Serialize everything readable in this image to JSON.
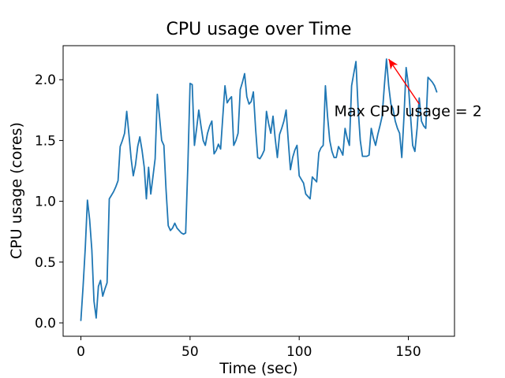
{
  "figure": {
    "title": "CPU usage over Time",
    "xlabel": "Time (sec)",
    "ylabel": "CPU usage (cores)"
  },
  "chart_data": {
    "type": "line",
    "title": "CPU usage over Time",
    "xlabel": "Time (sec)",
    "ylabel": "CPU usage (cores)",
    "line_color": "#1f77b4",
    "background_color": "#ffffff",
    "grid": false,
    "legend": false,
    "xlim": [
      -8.15,
      171.15
    ],
    "ylim": [
      -0.11,
      2.28
    ],
    "xticks": [
      0,
      50,
      100,
      150
    ],
    "xtick_labels": [
      "0",
      "50",
      "100",
      "150"
    ],
    "yticks": [
      0.0,
      0.5,
      1.0,
      1.5,
      2.0
    ],
    "ytick_labels": [
      "0.0",
      "0.5",
      "1.0",
      "1.5",
      "2.0"
    ],
    "x": [
      0,
      1,
      2,
      3,
      4,
      5,
      6,
      7,
      8,
      9,
      10,
      11,
      12,
      13,
      14,
      15,
      16,
      17,
      18,
      19,
      20,
      21,
      22,
      23,
      24,
      25,
      26,
      27,
      28,
      29,
      30,
      31,
      32,
      33,
      34,
      35,
      36,
      37,
      38,
      39,
      40,
      41,
      42,
      43,
      44,
      45,
      46,
      47,
      48,
      49,
      50,
      51,
      52,
      53,
      54,
      55,
      56,
      57,
      58,
      59,
      60,
      61,
      62,
      63,
      64,
      65,
      66,
      67,
      68,
      69,
      70,
      71,
      72,
      73,
      74,
      75,
      76,
      77,
      78,
      79,
      80,
      81,
      82,
      83,
      84,
      85,
      86,
      87,
      88,
      89,
      90,
      91,
      92,
      93,
      94,
      95,
      96,
      97,
      98,
      99,
      100,
      101,
      102,
      103,
      104,
      105,
      106,
      107,
      108,
      109,
      110,
      111,
      112,
      113,
      114,
      115,
      116,
      117,
      118,
      119,
      120,
      121,
      122,
      123,
      124,
      125,
      126,
      127,
      128,
      129,
      130,
      131,
      132,
      133,
      134,
      135,
      136,
      137,
      138,
      139,
      140,
      141,
      142,
      143,
      144,
      145,
      146,
      147,
      148,
      149,
      150,
      151,
      152,
      153,
      154,
      155,
      156,
      157,
      158,
      159,
      160,
      161,
      162,
      163
    ],
    "y": [
      0.02,
      0.3,
      0.62,
      1.01,
      0.85,
      0.6,
      0.18,
      0.04,
      0.3,
      0.35,
      0.22,
      0.28,
      0.33,
      1.02,
      1.05,
      1.08,
      1.12,
      1.17,
      1.45,
      1.5,
      1.56,
      1.74,
      1.55,
      1.35,
      1.21,
      1.3,
      1.45,
      1.53,
      1.42,
      1.28,
      1.02,
      1.28,
      1.06,
      1.2,
      1.35,
      1.88,
      1.7,
      1.5,
      1.46,
      1.1,
      0.8,
      0.76,
      0.78,
      0.82,
      0.78,
      0.76,
      0.74,
      0.73,
      0.74,
      1.3,
      1.97,
      1.96,
      1.46,
      1.6,
      1.75,
      1.62,
      1.5,
      1.46,
      1.56,
      1.62,
      1.66,
      1.39,
      1.42,
      1.47,
      1.43,
      1.7,
      1.95,
      1.81,
      1.84,
      1.86,
      1.46,
      1.5,
      1.56,
      1.92,
      1.98,
      2.05,
      1.86,
      1.8,
      1.82,
      1.9,
      1.6,
      1.36,
      1.35,
      1.38,
      1.42,
      1.74,
      1.64,
      1.56,
      1.7,
      1.52,
      1.36,
      1.55,
      1.6,
      1.66,
      1.75,
      1.5,
      1.26,
      1.36,
      1.42,
      1.46,
      1.21,
      1.18,
      1.15,
      1.06,
      1.04,
      1.02,
      1.2,
      1.18,
      1.16,
      1.4,
      1.44,
      1.46,
      1.95,
      1.7,
      1.5,
      1.41,
      1.36,
      1.36,
      1.45,
      1.42,
      1.38,
      1.6,
      1.52,
      1.46,
      1.95,
      2.05,
      2.15,
      1.76,
      1.5,
      1.37,
      1.37,
      1.37,
      1.38,
      1.6,
      1.52,
      1.46,
      1.55,
      1.62,
      1.7,
      1.95,
      2.17,
      1.95,
      1.8,
      1.76,
      1.66,
      1.6,
      1.56,
      1.36,
      1.7,
      2.1,
      1.96,
      1.7,
      1.46,
      1.41,
      1.6,
      1.85,
      1.66,
      1.62,
      1.6,
      2.02,
      2.0,
      1.98,
      1.95,
      1.9
    ],
    "annotation": {
      "text": "Max CPU usage = 2",
      "color": "#ff0000",
      "target_xy": [
        141,
        2.17
      ],
      "tail_xy": [
        155,
        1.8
      ],
      "text_xy": [
        116,
        1.7
      ]
    }
  }
}
